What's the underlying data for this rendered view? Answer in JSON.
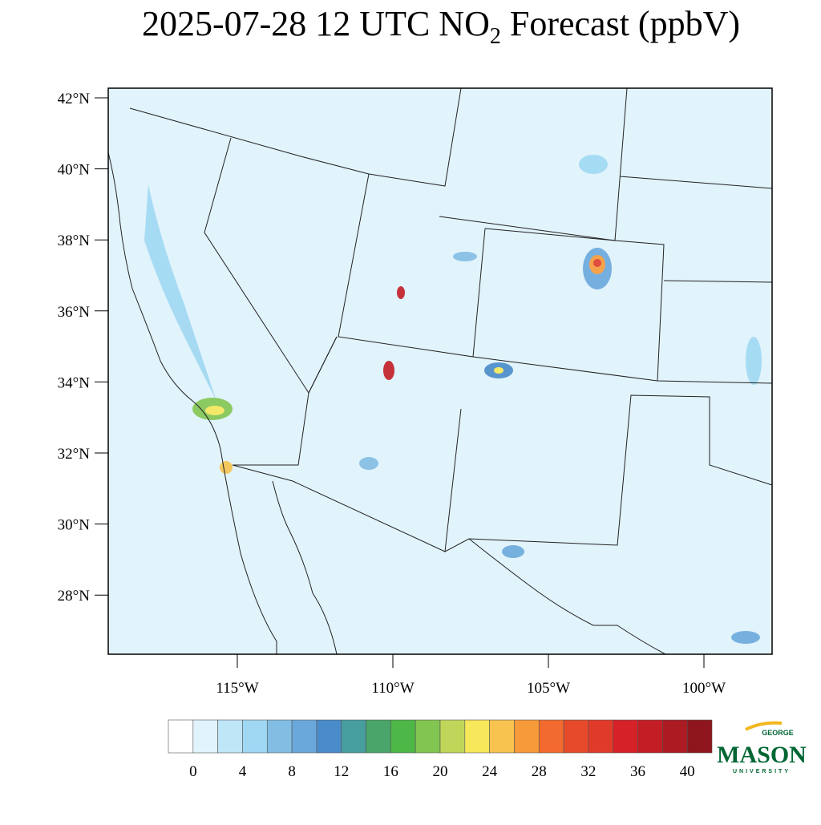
{
  "title": {
    "before": "2025-07-28 12 UTC NO",
    "subscript": "2",
    "after": " Forecast (ppbV)"
  },
  "map": {
    "lat_ticks": [
      {
        "value": 42,
        "label": "42°N"
      },
      {
        "value": 40,
        "label": "40°N"
      },
      {
        "value": 38,
        "label": "38°N"
      },
      {
        "value": 36,
        "label": "36°N"
      },
      {
        "value": 34,
        "label": "34°N"
      },
      {
        "value": 32,
        "label": "32°N"
      },
      {
        "value": 30,
        "label": "30°N"
      },
      {
        "value": 28,
        "label": "28°N"
      }
    ],
    "lon_ticks": [
      {
        "value": -115,
        "label": "115°W"
      },
      {
        "value": -110,
        "label": "110°W"
      },
      {
        "value": -105,
        "label": "105°W"
      },
      {
        "value": -100,
        "label": "100°W"
      }
    ]
  },
  "colorbar": {
    "ticks": [
      0,
      4,
      8,
      12,
      16,
      20,
      24,
      28,
      32,
      36,
      40
    ],
    "colors": [
      "#ffffff",
      "#e1f3fb",
      "#bfe6f7",
      "#a0d8f3",
      "#82bde3",
      "#6aa8dc",
      "#4a8bc9",
      "#469e9e",
      "#4aa56a",
      "#4db848",
      "#82c551",
      "#c0d65a",
      "#f7e75a",
      "#f8c44f",
      "#f79a3a",
      "#f26a2f",
      "#e64a2b",
      "#e03a2a",
      "#d72128",
      "#c31d25",
      "#ac1b22",
      "#8f161c"
    ]
  },
  "logo": {
    "top": "GEORGE",
    "main": "MASON",
    "bottom": "UNIVERSITY"
  }
}
